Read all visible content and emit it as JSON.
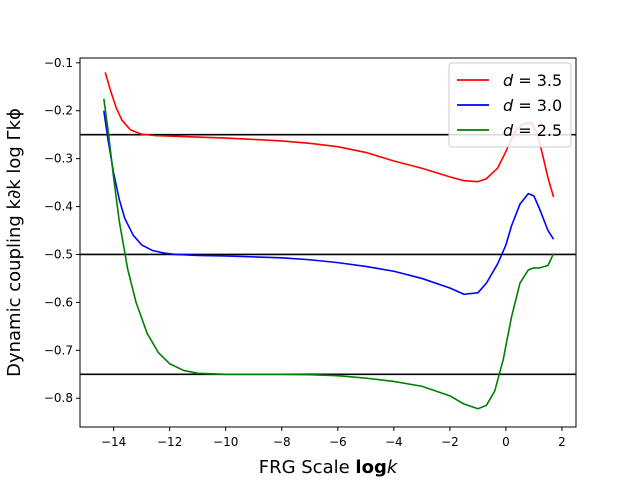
{
  "chart_data": {
    "type": "line",
    "xlabel_prefix": "FRG Scale ",
    "xlabel_bold": "log",
    "xlabel_var": "k",
    "ylabel": "Dynamic coupling k∂k log Γkϕ",
    "xlim": [
      -15.2,
      2.5
    ],
    "ylim": [
      -0.86,
      -0.09
    ],
    "xticks": [
      -14,
      -12,
      -10,
      -8,
      -6,
      -4,
      -2,
      0,
      2
    ],
    "xtick_labels": [
      "−14",
      "−12",
      "−10",
      "−8",
      "−6",
      "−4",
      "−2",
      "0",
      "2"
    ],
    "yticks": [
      -0.8,
      -0.7,
      -0.6,
      -0.5,
      -0.4,
      -0.3,
      -0.2,
      -0.1
    ],
    "ytick_labels": [
      "−0.8",
      "−0.7",
      "−0.6",
      "−0.5",
      "−0.4",
      "−0.3",
      "−0.2",
      "−0.1"
    ],
    "legend_position": "upper-right",
    "hlines": [
      -0.25,
      -0.5,
      -0.75
    ],
    "series": [
      {
        "name": "d = 3.5",
        "label_var": "d",
        "label_val": "3.5",
        "color": "#ff0000",
        "x": [
          -14.3,
          -14.1,
          -13.9,
          -13.7,
          -13.4,
          -13.0,
          -12.5,
          -12.0,
          -11.0,
          -10.0,
          -9.0,
          -8.0,
          -7.0,
          -6.0,
          -5.0,
          -4.0,
          -3.0,
          -2.0,
          -1.5,
          -1.0,
          -0.7,
          -0.3,
          0.0,
          0.3,
          0.6,
          0.9,
          1.1,
          1.3,
          1.5,
          1.7
        ],
        "y": [
          -0.12,
          -0.16,
          -0.195,
          -0.22,
          -0.24,
          -0.249,
          -0.252,
          -0.253,
          -0.255,
          -0.257,
          -0.26,
          -0.263,
          -0.268,
          -0.275,
          -0.287,
          -0.305,
          -0.32,
          -0.338,
          -0.346,
          -0.348,
          -0.342,
          -0.32,
          -0.285,
          -0.245,
          -0.228,
          -0.225,
          -0.245,
          -0.29,
          -0.34,
          -0.38
        ]
      },
      {
        "name": "d = 3.0",
        "label_var": "d",
        "label_val": "3.0",
        "color": "#0000ff",
        "x": [
          -14.35,
          -14.2,
          -14.0,
          -13.8,
          -13.6,
          -13.3,
          -13.0,
          -12.6,
          -12.2,
          -11.8,
          -11.0,
          -10.0,
          -9.0,
          -8.0,
          -7.0,
          -6.0,
          -5.0,
          -4.0,
          -3.0,
          -2.0,
          -1.5,
          -1.0,
          -0.7,
          -0.3,
          0.0,
          0.2,
          0.5,
          0.8,
          1.0,
          1.2,
          1.5,
          1.7
        ],
        "y": [
          -0.2,
          -0.26,
          -0.33,
          -0.385,
          -0.425,
          -0.46,
          -0.48,
          -0.492,
          -0.497,
          -0.5,
          -0.502,
          -0.503,
          -0.505,
          -0.507,
          -0.511,
          -0.517,
          -0.525,
          -0.535,
          -0.55,
          -0.57,
          -0.583,
          -0.58,
          -0.56,
          -0.52,
          -0.48,
          -0.44,
          -0.395,
          -0.373,
          -0.378,
          -0.405,
          -0.45,
          -0.468
        ]
      },
      {
        "name": "d = 2.5",
        "label_var": "d",
        "label_val": "2.5",
        "color": "#008000",
        "x": [
          -14.35,
          -14.2,
          -14.0,
          -13.8,
          -13.5,
          -13.2,
          -12.8,
          -12.4,
          -12.0,
          -11.5,
          -11.0,
          -10.0,
          -9.0,
          -8.0,
          -7.0,
          -6.0,
          -5.0,
          -4.0,
          -3.0,
          -2.0,
          -1.5,
          -1.0,
          -0.7,
          -0.4,
          -0.1,
          0.2,
          0.5,
          0.8,
          1.0,
          1.2,
          1.5,
          1.7
        ],
        "y": [
          -0.175,
          -0.24,
          -0.34,
          -0.43,
          -0.53,
          -0.6,
          -0.665,
          -0.705,
          -0.728,
          -0.742,
          -0.748,
          -0.75,
          -0.75,
          -0.75,
          -0.751,
          -0.753,
          -0.758,
          -0.765,
          -0.775,
          -0.795,
          -0.812,
          -0.822,
          -0.815,
          -0.785,
          -0.72,
          -0.63,
          -0.56,
          -0.532,
          -0.528,
          -0.528,
          -0.523,
          -0.498
        ]
      }
    ]
  }
}
